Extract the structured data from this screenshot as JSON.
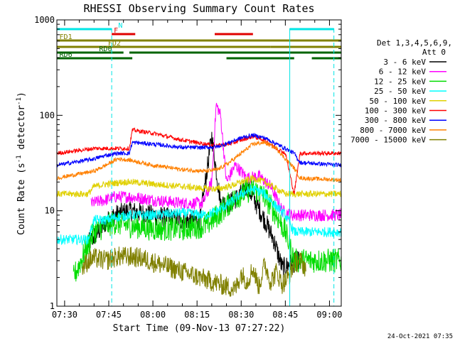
{
  "chart_data": {
    "type": "line",
    "title": "RHESSI Observing Summary Count Rates",
    "xlabel": "Start Time (09-Nov-13 07:27:22)",
    "ylabel_main": "Count Rate (s",
    "ylabel_sup1": "-1",
    "ylabel_mid": " detector",
    "ylabel_sup2": "-1",
    "ylabel_end": ")",
    "y_scale": "log",
    "ylim": [
      1,
      1000
    ],
    "x_unit": "minutes since 07:00",
    "xlim": [
      27.37,
      124
    ],
    "x_ticks": [
      {
        "value": 30,
        "label": "07:30"
      },
      {
        "value": 45,
        "label": "07:45"
      },
      {
        "value": 60,
        "label": "08:00"
      },
      {
        "value": 75,
        "label": "08:15"
      },
      {
        "value": 90,
        "label": "08:30"
      },
      {
        "value": 105,
        "label": "08:45"
      },
      {
        "value": 120,
        "label": "09:00"
      }
    ],
    "y_ticks": [
      {
        "value": 1,
        "label": "1"
      },
      {
        "value": 10,
        "label": "10"
      },
      {
        "value": 100,
        "label": "100"
      },
      {
        "value": 1000,
        "label": "1000"
      }
    ],
    "legend_header": [
      "Det 1,3,4,5,6,9,",
      "Att 0"
    ],
    "legend_position": "right",
    "timestamp": "24-Oct-2021 07:35",
    "vlines_cyan_solid": [
      46,
      106.5
    ],
    "vlines_cyan_dashed": [
      46,
      121.5
    ],
    "flag_bars": [
      {
        "label": "N",
        "color": "#00e5e5",
        "segments": [
          [
            27.4,
            46
          ],
          [
            106.5,
            121.5
          ]
        ]
      },
      {
        "label": "F",
        "color": "#e00000",
        "segments": [
          [
            46,
            54
          ],
          [
            81,
            94
          ]
        ]
      },
      {
        "label": "FD1",
        "color": "#808000",
        "segments": [
          [
            27.4,
            124
          ]
        ]
      },
      {
        "label": "FD2",
        "color": "#808000",
        "segments": [
          [
            27.4,
            100
          ],
          [
            100,
            124
          ]
        ]
      },
      {
        "label": "RD0",
        "color": "#006400",
        "segments": [
          [
            27.4,
            50
          ],
          [
            52,
            124
          ]
        ]
      },
      {
        "label": "RD6",
        "color": "#006400",
        "segments": [
          [
            27.4,
            53
          ],
          [
            85,
            108
          ],
          [
            114,
            124
          ]
        ]
      }
    ],
    "series": [
      {
        "name": "3 - 6 keV",
        "color": "#000000",
        "x": [
          38,
          44,
          47,
          52,
          60,
          70,
          76,
          80,
          83,
          86,
          89,
          92,
          95,
          98,
          101,
          104,
          107,
          110
        ],
        "y": [
          4.5,
          7.5,
          9,
          10,
          9,
          8,
          8,
          60,
          12,
          12,
          14,
          18,
          12,
          8,
          5,
          2.5,
          2.8,
          3
        ]
      },
      {
        "name": "6 - 12 keV",
        "color": "#ff00ff",
        "x": [
          39,
          44,
          47,
          52,
          60,
          70,
          77,
          80,
          81.5,
          83,
          85,
          88,
          92,
          96,
          100,
          104,
          107,
          112,
          124
        ],
        "y": [
          12,
          13,
          14,
          14,
          13,
          12,
          12,
          20,
          130,
          100,
          20,
          30,
          22,
          23,
          18,
          10,
          9,
          9,
          9
        ]
      },
      {
        "name": "12 - 25 keV",
        "color": "#00dd00",
        "x": [
          33,
          40,
          44,
          47,
          52,
          60,
          70,
          78,
          82,
          86,
          90,
          94,
          98,
          102,
          105,
          108,
          112,
          124
        ],
        "y": [
          2,
          6,
          7,
          7.5,
          7,
          6.5,
          6.5,
          7,
          9,
          12,
          15,
          17,
          14,
          9,
          6,
          3,
          3,
          3
        ]
      },
      {
        "name": "25 - 50 keV",
        "color": "#00ffff",
        "x": [
          27.4,
          38,
          40,
          44,
          47,
          52,
          60,
          70,
          78,
          82,
          86,
          90,
          94,
          98,
          102,
          105,
          108,
          112,
          124
        ],
        "y": [
          5,
          5,
          8,
          8,
          8.5,
          9,
          9,
          9.5,
          9,
          10,
          12,
          15,
          17,
          15,
          11,
          9,
          6,
          6,
          6
        ]
      },
      {
        "name": "50 - 100 keV",
        "color": "#e0d000",
        "x": [
          27.4,
          38,
          40,
          44,
          50,
          53,
          60,
          70,
          78,
          82,
          86,
          90,
          94,
          98,
          102,
          105,
          108,
          112,
          124
        ],
        "y": [
          15,
          15,
          18,
          19,
          20,
          20,
          19,
          18,
          17,
          17,
          18,
          20,
          22,
          20,
          17,
          15,
          15,
          15,
          15
        ]
      },
      {
        "name": "100 - 300 keV",
        "color": "#ff0000",
        "x": [
          27.4,
          40,
          44,
          48,
          52,
          53,
          60,
          70,
          78,
          82,
          86,
          90,
          94,
          98,
          102,
          105,
          108,
          110,
          124
        ],
        "y": [
          40,
          45,
          45,
          45,
          45,
          70,
          65,
          55,
          50,
          48,
          50,
          55,
          60,
          55,
          45,
          40,
          15,
          40,
          40
        ]
      },
      {
        "name": "300 - 800 keV",
        "color": "#0000ff",
        "x": [
          27.4,
          40,
          44,
          48,
          52,
          53,
          60,
          70,
          78,
          82,
          86,
          90,
          94,
          98,
          102,
          105,
          108,
          110,
          124
        ],
        "y": [
          30,
          35,
          38,
          40,
          40,
          52,
          50,
          46,
          46,
          47,
          52,
          58,
          62,
          58,
          50,
          45,
          40,
          32,
          30
        ]
      },
      {
        "name": "800 - 7000 keV",
        "color": "#ff8000",
        "x": [
          27.4,
          40,
          44,
          48,
          52,
          60,
          70,
          78,
          82,
          86,
          90,
          94,
          98,
          102,
          105,
          108,
          110,
          124
        ],
        "y": [
          22,
          26,
          30,
          35,
          34,
          30,
          27,
          26,
          27,
          32,
          40,
          50,
          52,
          45,
          35,
          28,
          22,
          21
        ]
      },
      {
        "name": "7000 - 15000 keV",
        "color": "#808000",
        "x": [
          36,
          38,
          40,
          44,
          48,
          52,
          56,
          88,
          90,
          92,
          94,
          96,
          98,
          100,
          102,
          104,
          106,
          108,
          110,
          112
        ],
        "y": [
          2.5,
          3,
          3.2,
          3,
          3.3,
          3.3,
          3.2,
          1.5,
          2.2,
          1.8,
          2.5,
          1.6,
          2.8,
          1.8,
          2.3,
          1.7,
          2.0,
          2.8,
          3.0,
          2.5
        ]
      }
    ]
  }
}
